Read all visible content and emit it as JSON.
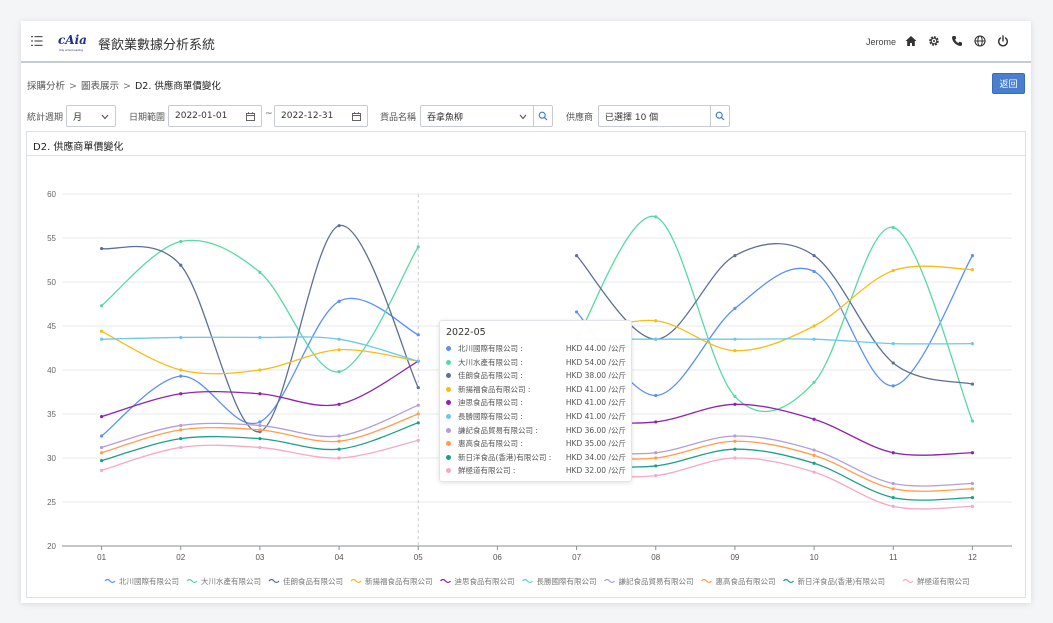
{
  "header": {
    "logo_text": "cAia",
    "logo_sub": "City of Accounting",
    "app_title": "餐飲業數據分析系統",
    "user_name": "Jerome",
    "icons": [
      "menu-icon",
      "home-icon",
      "gear-icon",
      "phone-icon",
      "globe-icon",
      "power-icon"
    ]
  },
  "breadcrumb": {
    "items": [
      "採購分析",
      "圖表展示",
      "D2. 供應商單價變化"
    ],
    "separator": ">"
  },
  "back_button": "返回",
  "filters": {
    "period_label": "統計週期",
    "period_value": "月",
    "date_label": "日期範圍",
    "date_from": "2022-01-01",
    "date_sep": "~",
    "date_to": "2022-12-31",
    "product_label": "貨品名稱",
    "product_value": "吞拿魚柳",
    "supplier_label": "供應商",
    "supplier_value": "已選擇 10 個"
  },
  "panel_title": "D2. 供應商單價變化",
  "chart_data": {
    "type": "line",
    "categories": [
      "01",
      "02",
      "03",
      "04",
      "05",
      "06",
      "07",
      "08",
      "09",
      "10",
      "11",
      "12"
    ],
    "ylim": [
      20,
      60
    ],
    "yticks": [
      "20",
      "25",
      "30",
      "35",
      "40",
      "45",
      "50",
      "55",
      "60"
    ],
    "grid": true,
    "legend_position": "bottom",
    "highlight_category": "05",
    "series": [
      {
        "name": "北川國際有限公司",
        "color": "#5b8ff9",
        "values": [
          32.5,
          39.3,
          34.1,
          47.8,
          44.0,
          null,
          46.6,
          37.1,
          47.0,
          51.2,
          38.2,
          53.0
        ]
      },
      {
        "name": "大川水產有限公司",
        "color": "#5ad8a6",
        "values": [
          47.3,
          54.6,
          51.1,
          39.8,
          54.0,
          null,
          43.5,
          57.4,
          37.0,
          38.6,
          56.2,
          34.2
        ]
      },
      {
        "name": "佳朗食品有限公司",
        "color": "#5d7092",
        "values": [
          53.8,
          51.9,
          33.0,
          56.4,
          38.0,
          null,
          53.0,
          43.5,
          53.0,
          53.0,
          40.8,
          38.4
        ]
      },
      {
        "name": "新揚福食品有限公司",
        "color": "#f6bd16",
        "values": [
          44.4,
          40.0,
          40.0,
          42.3,
          41.0,
          null,
          44.0,
          45.6,
          42.2,
          45.0,
          51.3,
          51.4
        ]
      },
      {
        "name": "迪思食品有限公司",
        "color": "#8e24aa",
        "values": [
          34.7,
          37.3,
          37.3,
          36.1,
          41.0,
          null,
          34.1,
          34.1,
          36.1,
          34.4,
          30.6,
          30.6
        ]
      },
      {
        "name": "長勝國際有限公司",
        "color": "#6dc8ec",
        "values": [
          43.5,
          43.7,
          43.7,
          43.5,
          41.0,
          null,
          43.5,
          43.5,
          43.5,
          43.5,
          43.0,
          43.0
        ]
      },
      {
        "name": "謙記食品貿易有限公司",
        "color": "#b39ddb",
        "values": [
          31.2,
          33.7,
          33.7,
          32.5,
          36.0,
          null,
          30.6,
          30.6,
          32.5,
          30.9,
          27.1,
          27.1
        ]
      },
      {
        "name": "惠高食品有限公司",
        "color": "#ff9d4d",
        "values": [
          30.6,
          33.2,
          33.2,
          31.9,
          35.0,
          null,
          30.0,
          30.0,
          31.9,
          30.3,
          26.5,
          26.5
        ]
      },
      {
        "name": "新日洋食品(香港)有限公司",
        "color": "#1e9e8f",
        "values": [
          29.7,
          32.2,
          32.2,
          31.0,
          34.0,
          null,
          29.1,
          29.1,
          31.0,
          29.4,
          25.5,
          25.5
        ]
      },
      {
        "name": "鮮極道有限公司",
        "color": "#f7a7c7",
        "values": [
          28.6,
          31.2,
          31.2,
          30.0,
          32.0,
          null,
          28.0,
          28.0,
          30.0,
          28.4,
          24.5,
          24.5
        ]
      }
    ]
  },
  "tooltip": {
    "title": "2022-05",
    "rows": [
      {
        "name": "北川國際有限公司 :",
        "value": "HKD 44.00 /公斤"
      },
      {
        "name": "大川水產有限公司 :",
        "value": "HKD 54.00 /公斤"
      },
      {
        "name": "佳朗食品有限公司 :",
        "value": "HKD 38.00 /公斤"
      },
      {
        "name": "新揚福食品有限公司 :",
        "value": "HKD 41.00 /公斤"
      },
      {
        "name": "迪思食品有限公司 :",
        "value": "HKD 41.00 /公斤"
      },
      {
        "name": "長勝國際有限公司 :",
        "value": "HKD 41.00 /公斤"
      },
      {
        "name": "謙記食品貿易有限公司 :",
        "value": "HKD 36.00 /公斤"
      },
      {
        "name": "惠高食品有限公司 :",
        "value": "HKD 35.00 /公斤"
      },
      {
        "name": "新日洋食品(香港)有限公司 :",
        "value": "HKD 34.00 /公斤"
      },
      {
        "name": "鮮極道有限公司 :",
        "value": "HKD 32.00 /公斤"
      }
    ]
  }
}
